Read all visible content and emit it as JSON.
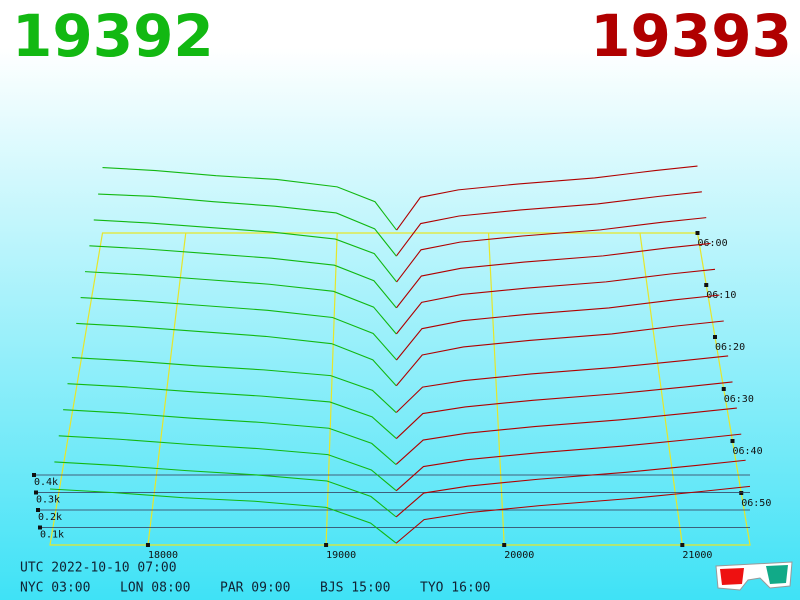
{
  "chart_data": {
    "type": "depth3d",
    "bid_label": "19392",
    "ask_label": "19393",
    "bid_color": "#12b812",
    "ask_color": "#b00000",
    "xlim": [
      17450,
      21380
    ],
    "xticks": [
      18000,
      19000,
      20000,
      21000
    ],
    "tlim": [
      "06:00",
      "07:00"
    ],
    "tticks": [
      "06:00",
      "06:10",
      "06:20",
      "06:30",
      "06:40",
      "06:50"
    ],
    "dticks": [
      {
        "value": 100,
        "label": "0.1k"
      },
      {
        "value": 200,
        "label": "0.2k"
      },
      {
        "value": 300,
        "label": "0.3k"
      },
      {
        "value": 400,
        "label": "0.4k"
      }
    ],
    "bid_prices": [
      17450,
      17800,
      18200,
      18600,
      19000,
      19250,
      19392
    ],
    "ask_prices": [
      19393,
      19550,
      19800,
      20200,
      20700,
      21100,
      21380
    ],
    "snapshots": [
      {
        "time": "06:00",
        "bids": [
          440,
          420,
          385,
          360,
          310,
          210,
          20
        ],
        "asks": [
          20,
          240,
          290,
          330,
          370,
          420,
          450
        ]
      },
      {
        "time": "06:05",
        "bids": [
          430,
          415,
          380,
          350,
          305,
          200,
          18
        ],
        "asks": [
          22,
          235,
          285,
          325,
          365,
          415,
          445
        ]
      },
      {
        "time": "06:10",
        "bids": [
          425,
          405,
          375,
          345,
          300,
          205,
          22
        ],
        "asks": [
          19,
          230,
          280,
          320,
          360,
          410,
          440
        ]
      },
      {
        "time": "06:15",
        "bids": [
          420,
          400,
          370,
          340,
          295,
          195,
          20
        ],
        "asks": [
          21,
          225,
          275,
          315,
          355,
          405,
          435
        ]
      },
      {
        "time": "06:20",
        "bids": [
          415,
          395,
          365,
          335,
          290,
          190,
          19
        ],
        "asks": [
          20,
          220,
          270,
          310,
          350,
          400,
          430
        ]
      },
      {
        "time": "06:25",
        "bids": [
          410,
          390,
          360,
          330,
          285,
          185,
          21
        ],
        "asks": [
          18,
          215,
          265,
          305,
          345,
          395,
          425
        ]
      },
      {
        "time": "06:30",
        "bids": [
          405,
          385,
          355,
          325,
          280,
          180,
          20
        ],
        "asks": [
          20,
          210,
          260,
          300,
          340,
          390,
          420
        ]
      },
      {
        "time": "06:35",
        "bids": [
          350,
          330,
          300,
          275,
          240,
          150,
          15
        ],
        "asks": [
          15,
          170,
          210,
          250,
          290,
          330,
          360
        ]
      },
      {
        "time": "06:40",
        "bids": [
          345,
          325,
          295,
          270,
          235,
          145,
          16
        ],
        "asks": [
          14,
          165,
          205,
          245,
          285,
          325,
          355
        ]
      },
      {
        "time": "06:45",
        "bids": [
          340,
          320,
          290,
          265,
          230,
          140,
          14
        ],
        "asks": [
          16,
          160,
          200,
          240,
          280,
          320,
          350
        ]
      },
      {
        "time": "06:50",
        "bids": [
          335,
          315,
          285,
          260,
          225,
          135,
          15
        ],
        "asks": [
          13,
          155,
          195,
          235,
          275,
          315,
          345
        ]
      },
      {
        "time": "06:55",
        "bids": [
          330,
          310,
          280,
          255,
          220,
          130,
          13
        ],
        "asks": [
          12,
          150,
          190,
          230,
          270,
          310,
          340
        ]
      },
      {
        "time": "07:00",
        "bids": [
          320,
          300,
          270,
          250,
          215,
          125,
          12
        ],
        "asks": [
          10,
          145,
          185,
          225,
          265,
          305,
          335
        ]
      }
    ],
    "clock": {
      "utc": "UTC 2022-10-10 07:00",
      "cities": [
        "NYC 03:00",
        "LON 08:00",
        "PAR 09:00",
        "BJS 15:00",
        "TYO 16:00"
      ]
    }
  }
}
